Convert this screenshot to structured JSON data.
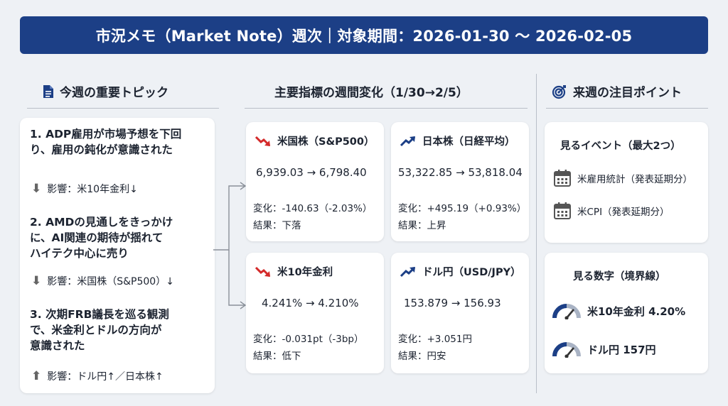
{
  "header": {
    "title": "市況メモ（Market Note）週次｜対象期間：2026-01-30 〜 2026-02-05"
  },
  "left": {
    "title": "今週の重要トピック",
    "topics": [
      {
        "line1": "1. ADP雇用が市場予想を下回",
        "line2": "り、雇用の鈍化が意識された",
        "line3": "",
        "impact": "影響：米10年金利↓",
        "direction": "down"
      },
      {
        "line1": "2. AMDの見通しをきっかけ",
        "line2": "に、AI関連の期待が揺れて",
        "line3": "ハイテク中心に売り",
        "impact": "影響：米国株（S&P500）↓",
        "direction": "down"
      },
      {
        "line1": "3. 次期FRB議長を巡る観測",
        "line2": "で、米金利とドルの方向が",
        "line3": "意識された",
        "impact": "影響：ドル円↑／日本株↑",
        "direction": "up"
      }
    ]
  },
  "middle": {
    "title": "主要指標の週間変化（1/30→2/5）",
    "indicators": [
      {
        "name": "米国株（S&P500）",
        "range": "6,939.03 → 6,798.40",
        "change": "変化：-140.63（-2.03%）",
        "result": "結果：下落",
        "trend": "down"
      },
      {
        "name": "日本株（日経平均）",
        "range": "53,322.85 → 53,818.04",
        "change": "変化：+495.19（+0.93%）",
        "result": "結果：上昇",
        "trend": "up"
      },
      {
        "name": "米10年金利",
        "range": "4.241% → 4.210%",
        "change": "変化：-0.031pt（-3bp）",
        "result": "結果：低下",
        "trend": "down"
      },
      {
        "name": "ドル円（USD/JPY）",
        "range": "153.879 → 156.93",
        "change": "変化：+3.051円",
        "result": "結果：円安",
        "trend": "up"
      }
    ]
  },
  "right": {
    "title": "来週の注目ポイント",
    "events_title": "見るイベント（最大2つ）",
    "events": [
      "米雇用統計（発表延期分）",
      "米CPI（発表延期分）"
    ],
    "levels_title": "見る数字（境界線）",
    "levels": [
      "米10年金利 4.20%",
      "ドル円 157円"
    ]
  },
  "colors": {
    "header_bg": "#1c3f86",
    "down": "#d42a2a",
    "up": "#1c3f86"
  }
}
